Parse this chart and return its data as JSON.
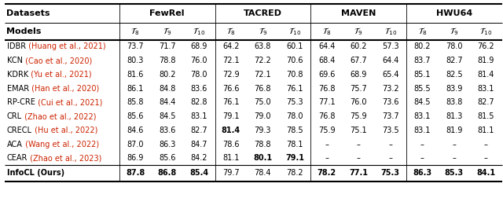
{
  "rows": [
    [
      "IDBR",
      " (Huang et al., 2021)",
      "73.7",
      "71.7",
      "68.9",
      "64.2",
      "63.8",
      "60.1",
      "64.4",
      "60.2",
      "57.3",
      "80.2",
      "78.0",
      "76.2"
    ],
    [
      "KCN",
      " (Cao et al., 2020)",
      "80.3",
      "78.8",
      "76.0",
      "72.1",
      "72.2",
      "70.6",
      "68.4",
      "67.7",
      "64.4",
      "83.7",
      "82.7",
      "81.9"
    ],
    [
      "KDRK",
      " (Yu et al., 2021)",
      "81.6",
      "80.2",
      "78.0",
      "72.9",
      "72.1",
      "70.8",
      "69.6",
      "68.9",
      "65.4",
      "85.1",
      "82.5",
      "81.4"
    ],
    [
      "EMAR",
      " (Han et al., 2020)",
      "86.1",
      "84.8",
      "83.6",
      "76.6",
      "76.8",
      "76.1",
      "76.8",
      "75.7",
      "73.2",
      "85.5",
      "83.9",
      "83.1"
    ],
    [
      "RP-CRE",
      " (Cui et al., 2021)",
      "85.8",
      "84.4",
      "82.8",
      "76.1",
      "75.0",
      "75.3",
      "77.1",
      "76.0",
      "73.6",
      "84.5",
      "83.8",
      "82.7"
    ],
    [
      "CRL",
      " (Zhao et al., 2022)",
      "85.6",
      "84.5",
      "83.1",
      "79.1",
      "79.0",
      "78.0",
      "76.8",
      "75.9",
      "73.7",
      "83.1",
      "81.3",
      "81.5"
    ],
    [
      "CRECL",
      " (Hu et al., 2022)",
      "84.6",
      "83.6",
      "82.7",
      "81.4",
      "79.3",
      "78.5",
      "75.9",
      "75.1",
      "73.5",
      "83.1",
      "81.9",
      "81.1"
    ],
    [
      "ACA",
      " (Wang et al., 2022)",
      "87.0",
      "86.3",
      "84.7",
      "78.6",
      "78.8",
      "78.1",
      "–",
      "–",
      "–",
      "–",
      "–",
      "–"
    ],
    [
      "CEAR",
      " (Zhao et al., 2023)",
      "86.9",
      "85.6",
      "84.2",
      "81.1",
      "80.1",
      "79.1",
      "–",
      "–",
      "–",
      "–",
      "–",
      "–"
    ]
  ],
  "infocl_row": [
    "87.8",
    "86.8",
    "85.4",
    "79.7",
    "78.4",
    "78.2",
    "78.2",
    "77.1",
    "75.3",
    "86.3",
    "85.3",
    "84.1"
  ],
  "bold_data": {
    "6": [
      4
    ],
    "8": [
      5,
      6
    ]
  },
  "infocl_bold_cols": [
    1,
    2,
    3,
    7,
    8,
    9,
    10,
    11,
    12
  ],
  "cite_color": "#cc2200",
  "bg_color": "#ffffff",
  "fs_data": 7.0,
  "fs_header": 8.0,
  "fs_tau": 7.5
}
